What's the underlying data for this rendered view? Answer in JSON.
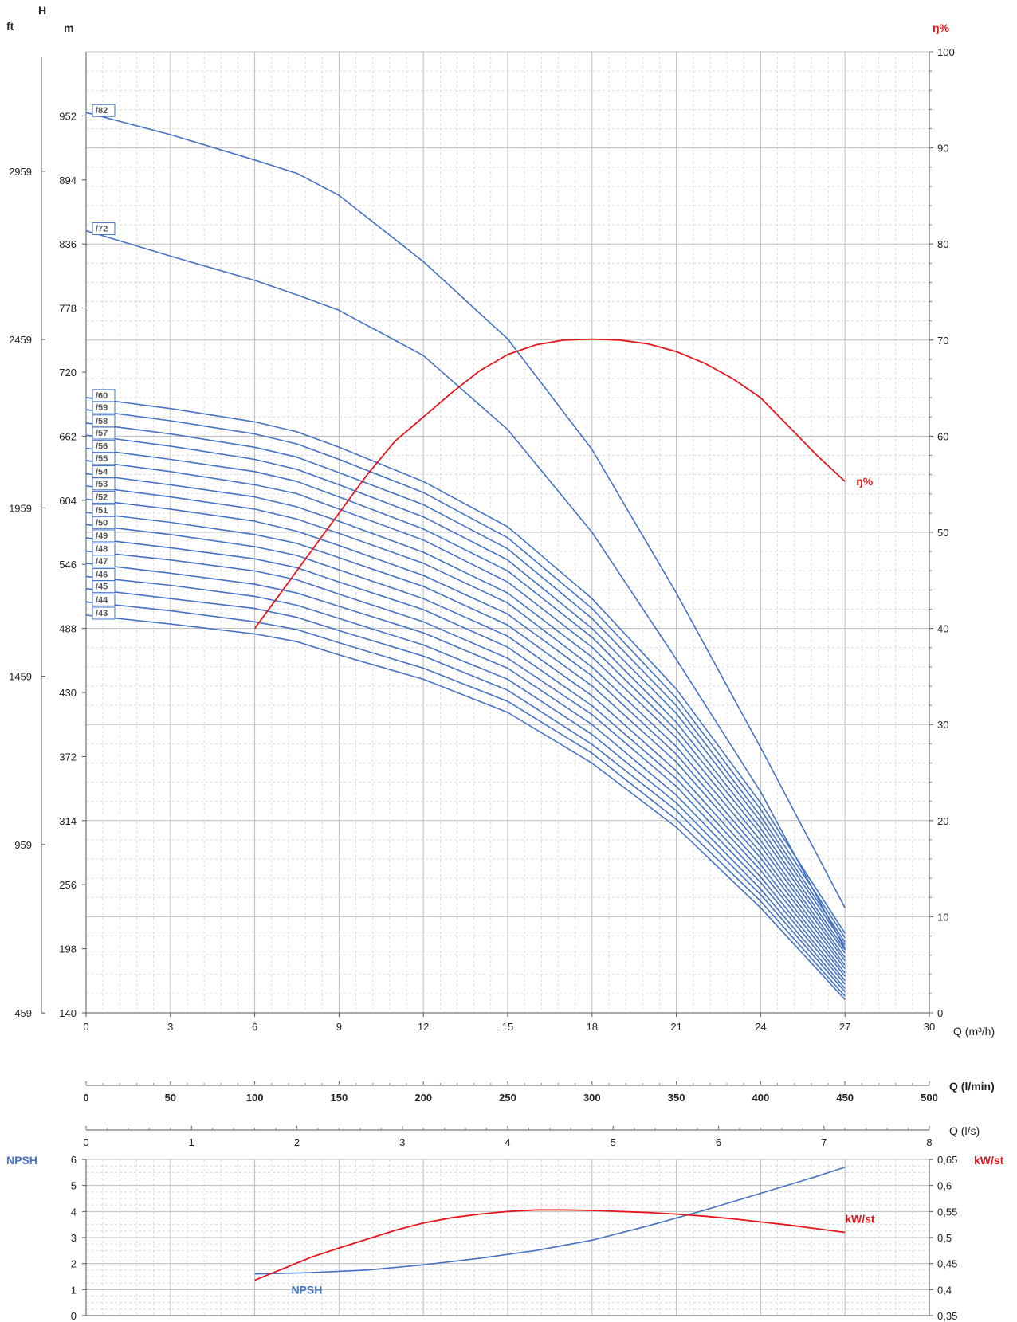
{
  "chart_data": [
    {
      "type": "line",
      "left_axis_ft": {
        "header": "ft",
        "ticks": [
          "459",
          "959",
          "1459",
          "1959",
          "2459",
          "2959"
        ]
      },
      "left_axis_m": {
        "header": "m",
        "top_label": "H",
        "ticks": [
          140,
          198,
          256,
          314,
          372,
          430,
          488,
          546,
          604,
          662,
          720,
          778,
          836,
          894,
          952
        ],
        "ylim": [
          140,
          1010
        ]
      },
      "right_axis": {
        "header": "ŋ%",
        "ticks": [
          0,
          10,
          20,
          30,
          40,
          50,
          60,
          70,
          80,
          90,
          100
        ],
        "ylim": [
          0,
          100
        ]
      },
      "x_axis_m3h": {
        "label": "Q (m³/h)",
        "ticks": [
          0,
          3,
          6,
          9,
          12,
          15,
          18,
          21,
          24,
          27,
          30
        ],
        "xlim": [
          0,
          30
        ]
      },
      "x_axis_lmin": {
        "label": "Q (l/min)",
        "ticks": [
          0,
          50,
          100,
          150,
          200,
          250,
          300,
          350,
          400,
          450,
          500
        ]
      },
      "x_axis_ls": {
        "label": "Q (l/s)",
        "ticks": [
          0,
          1,
          2,
          3,
          4,
          5,
          6,
          7,
          8
        ]
      },
      "head_curves": [
        {
          "name": "/82",
          "x": [
            0,
            3,
            6,
            7.5,
            9,
            12,
            15,
            18,
            21,
            24,
            27
          ],
          "y": [
            955,
            935,
            912,
            900,
            880,
            820,
            750,
            650,
            520,
            380,
            235
          ]
        },
        {
          "name": "/72",
          "x": [
            0,
            3,
            6,
            7.5,
            9,
            12,
            15,
            18,
            21,
            24,
            27
          ],
          "y": [
            848,
            825,
            803,
            790,
            776,
            735,
            668,
            575,
            460,
            340,
            198
          ]
        },
        {
          "name": "/60",
          "x": [
            0,
            3,
            6,
            7.5,
            9,
            12,
            15,
            18,
            21,
            24,
            27
          ],
          "y": [
            697,
            687,
            675,
            666,
            652,
            621,
            580,
            515,
            433,
            330,
            212
          ]
        },
        {
          "name": "/59",
          "x": [
            0,
            3,
            6,
            7.5,
            9,
            12,
            15,
            18,
            21,
            24,
            27
          ],
          "y": [
            686,
            676,
            664,
            655,
            641,
            611,
            570,
            506,
            425,
            324,
            208
          ]
        },
        {
          "name": "/58",
          "x": [
            0,
            3,
            6,
            7.5,
            9,
            12,
            15,
            18,
            21,
            24,
            27
          ],
          "y": [
            674,
            664,
            652,
            643,
            629,
            600,
            560,
            497,
            418,
            318,
            204
          ]
        },
        {
          "name": "/57",
          "x": [
            0,
            3,
            6,
            7.5,
            9,
            12,
            15,
            18,
            21,
            24,
            27
          ],
          "y": [
            663,
            653,
            641,
            632,
            618,
            589,
            550,
            488,
            411,
            313,
            201
          ]
        },
        {
          "name": "/56",
          "x": [
            0,
            3,
            6,
            7.5,
            9,
            12,
            15,
            18,
            21,
            24,
            27
          ],
          "y": [
            651,
            641,
            630,
            621,
            607,
            578,
            540,
            480,
            403,
            307,
            197
          ]
        },
        {
          "name": "/55",
          "x": [
            0,
            3,
            6,
            7.5,
            9,
            12,
            15,
            18,
            21,
            24,
            27
          ],
          "y": [
            640,
            630,
            618,
            610,
            596,
            568,
            530,
            471,
            396,
            302,
            194
          ]
        },
        {
          "name": "/54",
          "x": [
            0,
            3,
            6,
            7.5,
            9,
            12,
            15,
            18,
            21,
            24,
            27
          ],
          "y": [
            628,
            618,
            607,
            598,
            585,
            557,
            520,
            462,
            389,
            296,
            190
          ]
        },
        {
          "name": "/53",
          "x": [
            0,
            3,
            6,
            7.5,
            9,
            12,
            15,
            18,
            21,
            24,
            27
          ],
          "y": [
            617,
            607,
            596,
            587,
            574,
            547,
            511,
            453,
            381,
            291,
            187
          ]
        },
        {
          "name": "/52",
          "x": [
            0,
            3,
            6,
            7.5,
            9,
            12,
            15,
            18,
            21,
            24,
            27
          ],
          "y": [
            605,
            596,
            585,
            576,
            563,
            536,
            501,
            445,
            374,
            285,
            183
          ]
        },
        {
          "name": "/51",
          "x": [
            0,
            3,
            6,
            7.5,
            9,
            12,
            15,
            18,
            21,
            24,
            27
          ],
          "y": [
            593,
            584,
            573,
            565,
            552,
            526,
            491,
            436,
            367,
            280,
            180
          ]
        },
        {
          "name": "/50",
          "x": [
            0,
            3,
            6,
            7.5,
            9,
            12,
            15,
            18,
            21,
            24,
            27
          ],
          "y": [
            582,
            573,
            562,
            554,
            541,
            515,
            481,
            427,
            359,
            274,
            176
          ]
        },
        {
          "name": "/49",
          "x": [
            0,
            3,
            6,
            7.5,
            9,
            12,
            15,
            18,
            21,
            24,
            27
          ],
          "y": [
            570,
            561,
            551,
            543,
            530,
            505,
            471,
            418,
            352,
            269,
            173
          ]
        },
        {
          "name": "/48",
          "x": [
            0,
            3,
            6,
            7.5,
            9,
            12,
            15,
            18,
            21,
            24,
            27
          ],
          "y": [
            558,
            550,
            540,
            532,
            519,
            494,
            461,
            410,
            345,
            263,
            169
          ]
        },
        {
          "name": "/47",
          "x": [
            0,
            3,
            6,
            7.5,
            9,
            12,
            15,
            18,
            21,
            24,
            27
          ],
          "y": [
            547,
            538,
            528,
            520,
            508,
            484,
            452,
            401,
            337,
            258,
            166
          ]
        },
        {
          "name": "/46",
          "x": [
            0,
            3,
            6,
            7.5,
            9,
            12,
            15,
            18,
            21,
            24,
            27
          ],
          "y": [
            535,
            527,
            517,
            509,
            497,
            473,
            442,
            392,
            330,
            252,
            162
          ]
        },
        {
          "name": "/45",
          "x": [
            0,
            3,
            6,
            7.5,
            9,
            12,
            15,
            18,
            21,
            24,
            27
          ],
          "y": [
            524,
            515,
            506,
            498,
            486,
            463,
            432,
            383,
            323,
            247,
            159
          ]
        },
        {
          "name": "/44",
          "x": [
            0,
            3,
            6,
            7.5,
            9,
            12,
            15,
            18,
            21,
            24,
            27
          ],
          "y": [
            512,
            504,
            494,
            487,
            475,
            452,
            422,
            375,
            315,
            241,
            155
          ]
        },
        {
          "name": "/43",
          "x": [
            0,
            3,
            6,
            7.5,
            9,
            12,
            15,
            18,
            21,
            24,
            27
          ],
          "y": [
            500,
            492,
            483,
            476,
            464,
            442,
            412,
            366,
            308,
            235,
            152
          ]
        }
      ],
      "efficiency_curve": {
        "name": "ŋ%",
        "x": [
          6,
          7,
          8,
          9,
          10,
          11,
          12,
          13,
          14,
          15,
          16,
          17,
          18,
          19,
          20,
          21,
          22,
          23,
          24,
          25,
          26,
          27
        ],
        "y": [
          40,
          44,
          48,
          52,
          56,
          59.5,
          62,
          64.5,
          66.8,
          68.5,
          69.5,
          70,
          70.1,
          70,
          69.6,
          68.8,
          67.6,
          66,
          64,
          61,
          58,
          55.3
        ]
      }
    },
    {
      "type": "line",
      "left_axis": {
        "header": "NPSH",
        "ticks": [
          0,
          1,
          2,
          3,
          4,
          5,
          6
        ],
        "ylim": [
          0,
          6
        ]
      },
      "right_axis": {
        "header": "kW/st",
        "ticks": [
          "0,35",
          "0,4",
          "0,45",
          "0,5",
          "0,55",
          "0,6",
          "0,65"
        ],
        "ylim": [
          0.35,
          0.65
        ]
      },
      "npsh_curve": {
        "name": "NPSH",
        "x": [
          6,
          8,
          10,
          12,
          14,
          16,
          18,
          20,
          22,
          24,
          26,
          27
        ],
        "y": [
          1.6,
          1.65,
          1.75,
          1.95,
          2.2,
          2.5,
          2.9,
          3.45,
          4.05,
          4.7,
          5.35,
          5.7
        ]
      },
      "power_curve": {
        "name": "kW/st",
        "x": [
          6,
          7,
          8,
          9,
          10,
          11,
          12,
          13,
          14,
          15,
          16,
          17,
          18,
          19,
          20,
          21,
          22,
          23,
          24,
          25,
          26,
          27
        ],
        "y": [
          0.418,
          0.44,
          0.462,
          0.48,
          0.497,
          0.514,
          0.528,
          0.538,
          0.545,
          0.55,
          0.553,
          0.553,
          0.552,
          0.55,
          0.548,
          0.545,
          0.541,
          0.536,
          0.53,
          0.524,
          0.517,
          0.51
        ]
      }
    }
  ]
}
